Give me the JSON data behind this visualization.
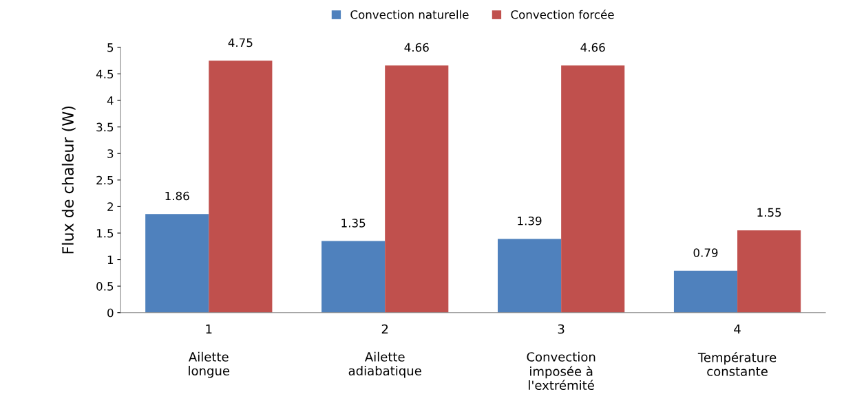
{
  "chart_data": {
    "type": "bar",
    "ylabel": "Flux de chaleur (W)",
    "categories": [
      "1\n\nAilette\nlongue",
      "2\n\nAilette\nadiabatique",
      "3\n\nConvection\nimposée à\nl'extrémité",
      "4\n\nTempérature\nconstante"
    ],
    "series": [
      {
        "name": "Convection naturelle",
        "color": "#4f81bd",
        "values": [
          1.86,
          1.35,
          1.39,
          0.79
        ]
      },
      {
        "name": "Convection forcée",
        "color": "#c0504d",
        "values": [
          4.75,
          4.66,
          4.66,
          1.55
        ]
      }
    ],
    "ylim": [
      0,
      5
    ],
    "yticks": [
      0,
      0.5,
      1,
      1.5,
      2,
      2.5,
      3,
      3.5,
      4,
      4.5,
      5
    ],
    "data_labels": true,
    "grid": false,
    "legend": "top"
  }
}
